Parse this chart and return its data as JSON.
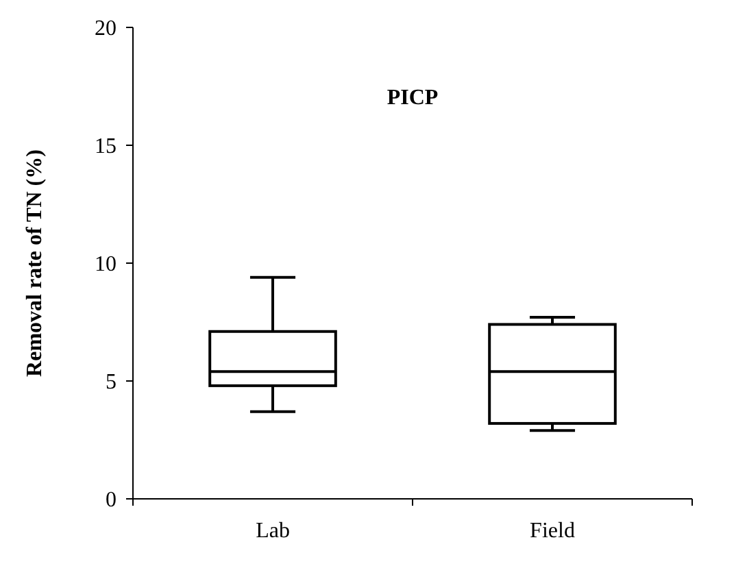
{
  "chart_data": {
    "type": "box",
    "title": "PICP",
    "ylabel": "Removal rate of TN (%)",
    "categories": [
      "Lab",
      "Field"
    ],
    "ylim": [
      0,
      20
    ],
    "yticks": [
      0,
      5,
      10,
      15,
      20
    ],
    "boxes": [
      {
        "low": 3.7,
        "q1": 4.8,
        "median": 5.4,
        "q3": 7.1,
        "high": 9.4
      },
      {
        "low": 2.9,
        "q1": 3.2,
        "median": 5.4,
        "q3": 7.4,
        "high": 7.7
      }
    ]
  }
}
